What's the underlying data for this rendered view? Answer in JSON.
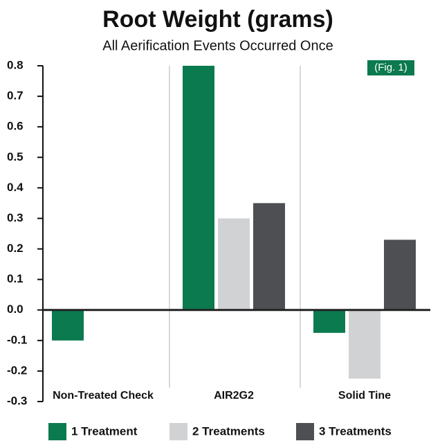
{
  "chart_data": {
    "type": "bar",
    "title": "Root Weight (grams)",
    "subtitle": "All Aerification Events Occurred Once",
    "annotation": "(Fig. 1)",
    "categories": [
      "Non-Treated Check",
      "AIR2G2",
      "Solid Tine"
    ],
    "series": [
      {
        "name": "1 Treatment",
        "color": "#0b7a4e",
        "values": [
          -0.1,
          0.8,
          -0.075
        ]
      },
      {
        "name": "2 Treatments",
        "color": "#d1d2d4",
        "values": [
          0,
          0.3,
          -0.225
        ]
      },
      {
        "name": "3 Treatments",
        "color": "#4d4f52",
        "values": [
          0,
          0.35,
          0.23
        ]
      }
    ],
    "ylim": [
      -0.3,
      0.8
    ],
    "yticks": [
      -0.3,
      -0.2,
      -0.1,
      {
        "value": 0,
        "label": "0.0"
      },
      0.1,
      0.2,
      0.3,
      0.4,
      0.5,
      0.6,
      0.7,
      0.8
    ],
    "legend": "bottom"
  }
}
